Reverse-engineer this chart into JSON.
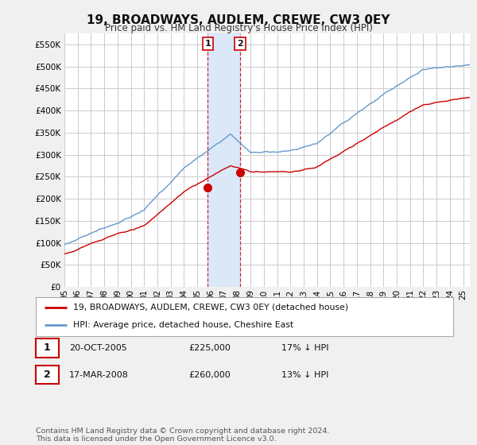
{
  "title": "19, BROADWAYS, AUDLEM, CREWE, CW3 0EY",
  "subtitle": "Price paid vs. HM Land Registry's House Price Index (HPI)",
  "ylabel_ticks": [
    "£0",
    "£50K",
    "£100K",
    "£150K",
    "£200K",
    "£250K",
    "£300K",
    "£350K",
    "£400K",
    "£450K",
    "£500K",
    "£550K"
  ],
  "ytick_values": [
    0,
    50000,
    100000,
    150000,
    200000,
    250000,
    300000,
    350000,
    400000,
    450000,
    500000,
    550000
  ],
  "ylim": [
    0,
    575000
  ],
  "xlim_start": 1995.0,
  "xlim_end": 2025.5,
  "bg_color": "#f0f0f0",
  "plot_bg_color": "#ffffff",
  "grid_color": "#cccccc",
  "red_line_color": "#cc0000",
  "blue_line_color": "#6699cc",
  "shade_color": "#dae8f8",
  "sale1_x": 2005.79,
  "sale1_y": 225000,
  "sale1_label": "1",
  "sale2_x": 2008.21,
  "sale2_y": 260000,
  "sale2_label": "2",
  "shade_x1": 2005.79,
  "shade_x2": 2008.21,
  "legend_line1": "19, BROADWAYS, AUDLEM, CREWE, CW3 0EY (detached house)",
  "legend_line2": "HPI: Average price, detached house, Cheshire East",
  "table_row1": [
    "1",
    "20-OCT-2005",
    "£225,000",
    "17% ↓ HPI"
  ],
  "table_row2": [
    "2",
    "17-MAR-2008",
    "£260,000",
    "13% ↓ HPI"
  ],
  "footer": "Contains HM Land Registry data © Crown copyright and database right 2024.\nThis data is licensed under the Open Government Licence v3.0.",
  "xtick_years": [
    1995,
    1996,
    1997,
    1998,
    1999,
    2000,
    2001,
    2002,
    2003,
    2004,
    2005,
    2006,
    2007,
    2008,
    2009,
    2010,
    2011,
    2012,
    2013,
    2014,
    2015,
    2016,
    2017,
    2018,
    2019,
    2020,
    2021,
    2022,
    2023,
    2024,
    2025
  ]
}
